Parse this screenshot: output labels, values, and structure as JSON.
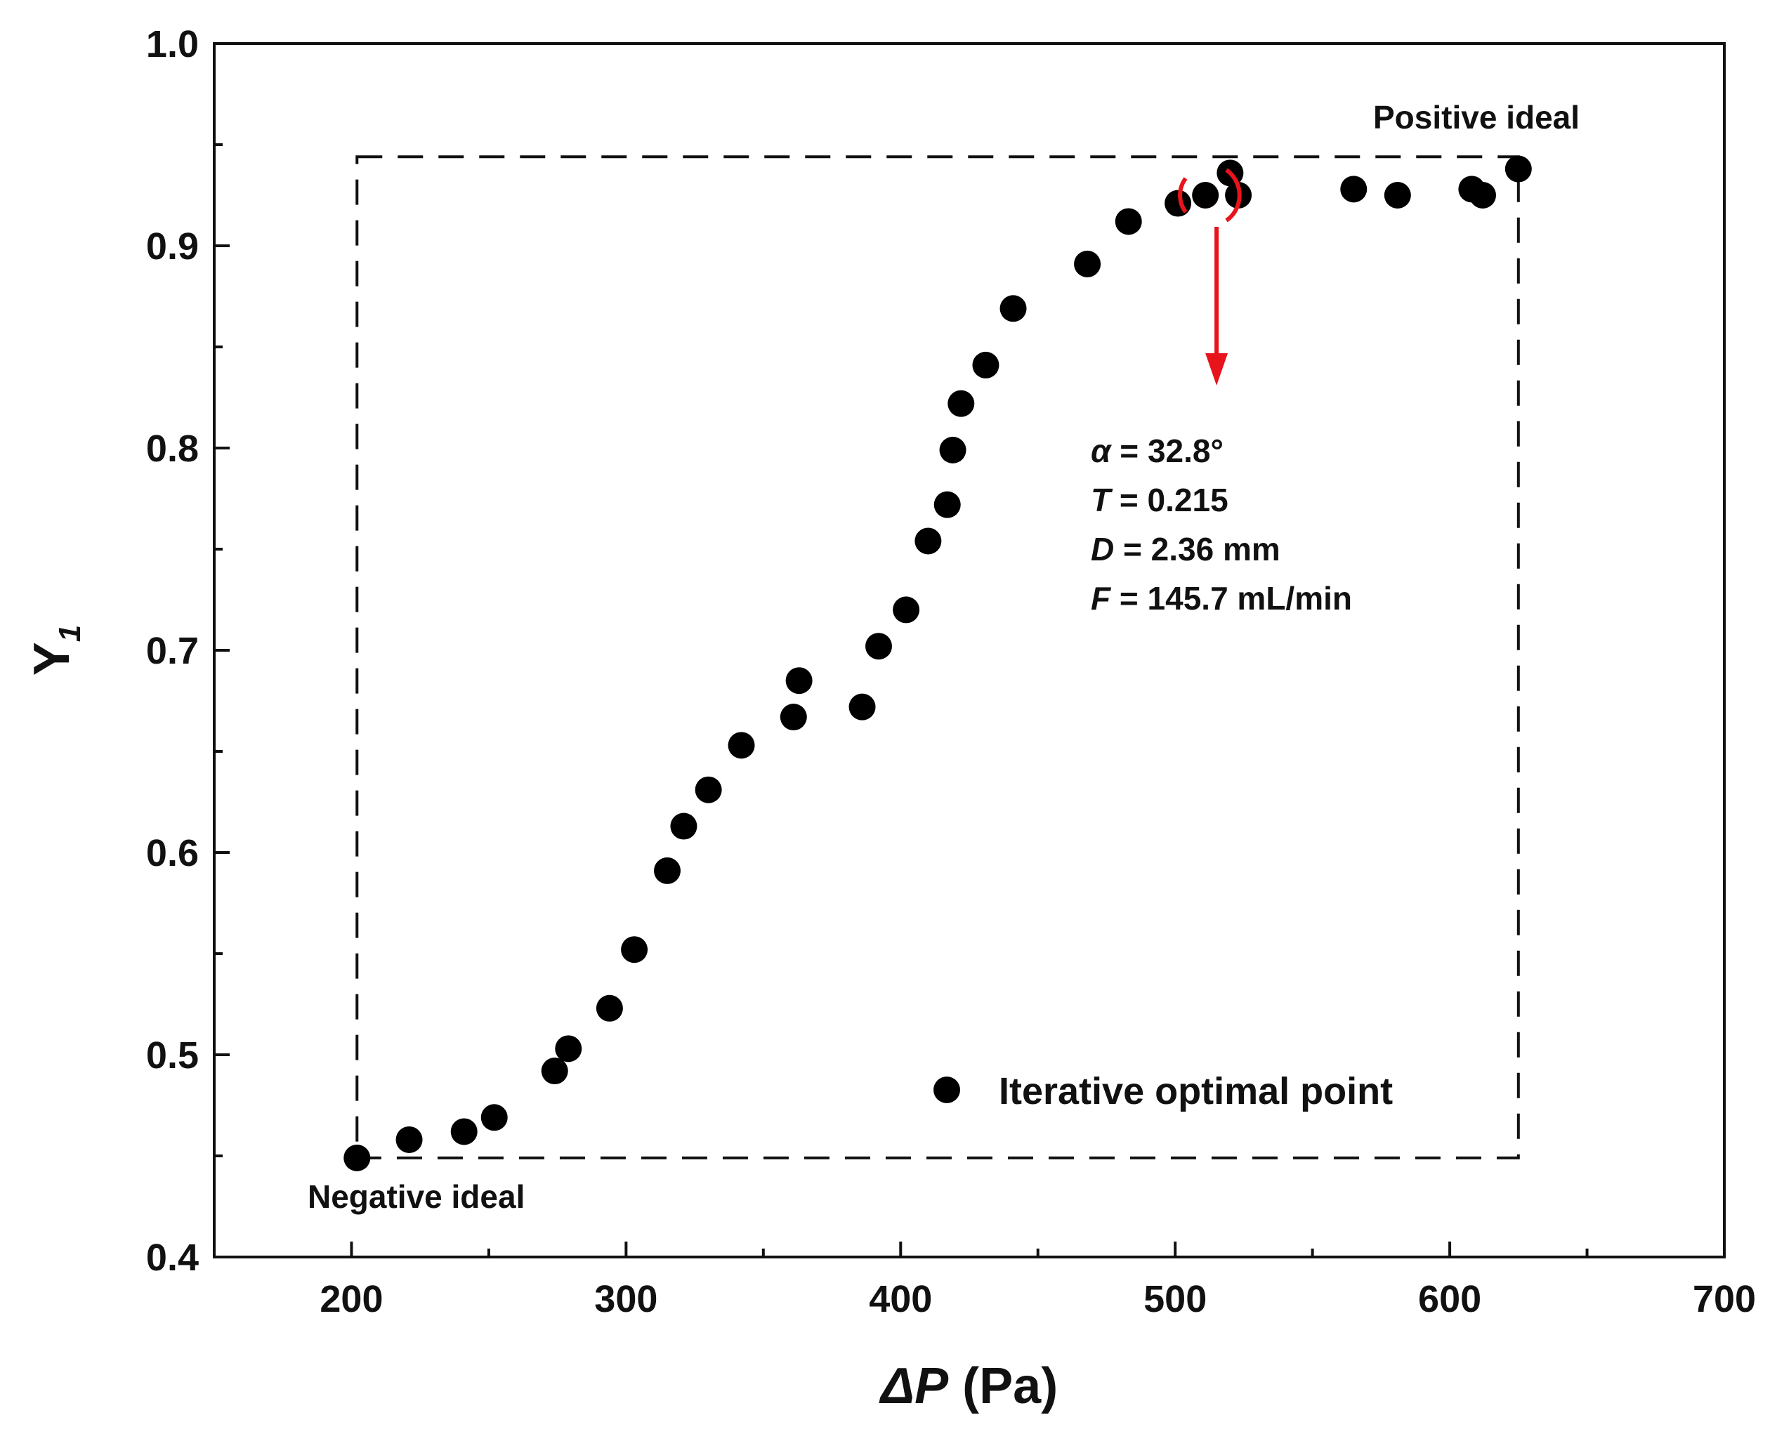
{
  "chart_data": {
    "type": "scatter",
    "title": "",
    "xlabel_italic": "ΔP",
    "xlabel_unit": " (Pa)",
    "ylabel_main": "Y",
    "ylabel_sub": "1",
    "xlim": [
      150,
      700
    ],
    "ylim": [
      0.4,
      1.0
    ],
    "x_ticks": [
      200,
      300,
      400,
      500,
      600,
      700
    ],
    "y_ticks": [
      0.4,
      0.5,
      0.6,
      0.7,
      0.8,
      0.9,
      1.0
    ],
    "x_tick_labels": [
      "200",
      "300",
      "400",
      "500",
      "600",
      "700"
    ],
    "y_tick_labels": [
      "0.4",
      "0.5",
      "0.6",
      "0.7",
      "0.8",
      "0.9",
      "1.0"
    ],
    "grid": false,
    "legend_position": "bottom-right",
    "series": [
      {
        "name": "Iterative optimal point",
        "marker": "circle",
        "color": "#000000",
        "x": [
          202,
          221,
          241,
          252,
          274,
          279,
          294,
          303,
          315,
          321,
          330,
          342,
          361,
          363,
          386,
          392,
          402,
          410,
          417,
          419,
          422,
          431,
          441,
          468,
          483,
          501,
          511,
          520,
          523,
          565,
          581,
          608,
          612,
          625
        ],
        "y": [
          0.449,
          0.458,
          0.462,
          0.469,
          0.492,
          0.503,
          0.523,
          0.552,
          0.591,
          0.613,
          0.631,
          0.653,
          0.667,
          0.685,
          0.672,
          0.702,
          0.72,
          0.754,
          0.772,
          0.799,
          0.822,
          0.841,
          0.869,
          0.891,
          0.912,
          0.921,
          0.925,
          0.936,
          0.925,
          0.928,
          0.925,
          0.928,
          0.925,
          0.938
        ]
      }
    ],
    "ideal_box": {
      "negative": {
        "x": 202,
        "y": 0.449,
        "label": "Negative ideal"
      },
      "positive": {
        "x": 625,
        "y": 0.944,
        "label": "Positive ideal"
      }
    },
    "highlight": {
      "x": 512,
      "y": 0.925,
      "arrow_to_y": 0.833,
      "color": "#e8141b",
      "lines": [
        {
          "var": "α",
          "rest": " = 32.8°"
        },
        {
          "var": "T",
          "rest": " = 0.215"
        },
        {
          "var": "D",
          "rest": " = 2.36 mm"
        },
        {
          "var": "F",
          "rest": " = 145.7 mL/min"
        }
      ]
    }
  }
}
